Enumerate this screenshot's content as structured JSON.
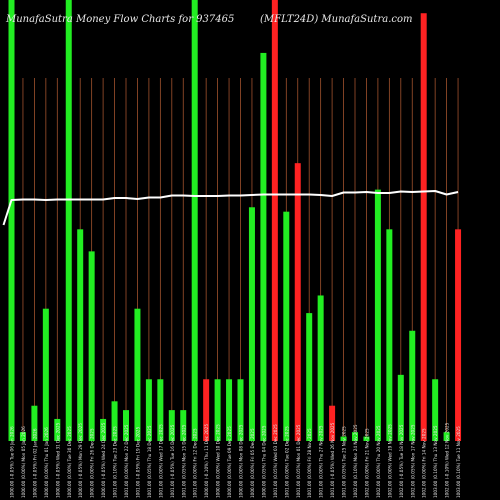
{
  "header": {
    "left": "MunafaSutra  Money Flow  Charts for 937465",
    "right": "(MFLT24D) MunafaSutra.com"
  },
  "colors": {
    "background": "#000000",
    "up": "#22ee22",
    "down": "#ff2222",
    "grid": "#a0522d",
    "line": "#ffffff",
    "text": "#e8e8e8"
  },
  "chart_data": {
    "type": "bar",
    "title": "MunafaSutra  Money Flow  Charts for 937465",
    "grid": "vertical",
    "categories": [
      "Tue 06 Jan 2026",
      "Mon 05 Jan 2026",
      "Fri 02 Jan 2026",
      "Thu 01 Jan 2026",
      "Wed 31 Dec 2025",
      "Tue 30 Dec 2025",
      "Mon 29 Dec 2025",
      "Fri 26 Dec 2025",
      "Wed 24 Dec 2025",
      "Tue 23 Dec 2025",
      "Mon 22 Dec 2025",
      "Fri 19 Dec 2025",
      "Thu 18 Dec 2025",
      "Wed 17 Dec 2025",
      "Tue 16 Dec 2025",
      "Mon 15 Dec 2025",
      "Fri 12 Dec 2025",
      "Thu 11 Dec 2025",
      "Wed 10 Dec 2025",
      "Tue 09 Dec 2025",
      "Mon 08 Dec 2025",
      "Fri 05 Dec 2025",
      "Thu 04 Dec 2025",
      "Wed 03 Dec 2025",
      "Tue 02 Dec 2025",
      "Mon 01 Dec 2025",
      "Fri 28 Nov 2025",
      "Thu 27 Nov 2025",
      "Wed 26 Nov 2025",
      "Tue 25 Nov 2025",
      "Mon 24 Nov 2025",
      "Fri 21 Nov 2025",
      "Thu 20 Nov 2025",
      "Wed 19 Nov 2025",
      "Tue 18 Nov 2025",
      "Mon 17 Nov 2025",
      "Fri 14 Nov 2025",
      "Thu 13 Nov 2025",
      "Wed 12 Nov 2025",
      "Tue 11 Nov 2025"
    ],
    "tick_labels": [
      "1000.00 (-0.05%)",
      "1000.00 (0.00%)",
      "1000.00 (-0.05%)",
      "1000.00 (0.00%)",
      "1000.00 (-0.05%)",
      "1000.00 (0.00%)",
      "1000.00 (-0.05%)",
      "1000.00 (0.00%)",
      "1000.00 (-0.05%)",
      "1001.00 (0.10%)",
      "1001.00 (0.00%)",
      "1001.00 (-0.05%)",
      "1001.00 (0.05%)",
      "1001.00 (0.00%)",
      "1001.00 (-0.05%)",
      "1001.00 (0.05%)",
      "1001.00 (0.00%)",
      "1000.00 (-0.10%)",
      "1000.00 (0.00%)",
      "1000.00 (0.00%)",
      "1000.00 (0.00%)",
      "1000.00 (0.00%)",
      "1000.00 (0.05%)",
      "1001.00 (0.05%)",
      "1001.00 (0.00%)",
      "1001.00 (0.05%)",
      "1001.00 (0.00%)",
      "1001.00 (0.00%)",
      "1001.00 (-0.05%)",
      "1001.00 (0.05%)",
      "1002.00 (0.10%)",
      "1002.00 (0.00%)",
      "1002.00 (0.00%)",
      "1002.00 (0.00%)",
      "1002.00 (-0.05%)",
      "1002.00 (0.05%)",
      "1002.00 (0.00%)",
      "1003.00 (0.10%)",
      "1002.00 (-0.10%)",
      "1003.00 (0.10%)"
    ],
    "bar_values": [
      100,
      2,
      8,
      30,
      5,
      100,
      48,
      43,
      5,
      9,
      7,
      30,
      14,
      14,
      7,
      7,
      100,
      14,
      14,
      14,
      14,
      53,
      88,
      100,
      52,
      63,
      29,
      33,
      8,
      1,
      2,
      1,
      57,
      48,
      15,
      25,
      97,
      14,
      2,
      48
    ],
    "bar_directions": [
      "up",
      "up",
      "up",
      "up",
      "up",
      "up",
      "up",
      "up",
      "up",
      "up",
      "up",
      "up",
      "up",
      "up",
      "up",
      "up",
      "up",
      "down",
      "up",
      "up",
      "up",
      "up",
      "up",
      "down",
      "up",
      "down",
      "up",
      "up",
      "down",
      "up",
      "up",
      "up",
      "up",
      "up",
      "up",
      "up",
      "down",
      "up",
      "up",
      "down"
    ],
    "line_values": [
      1000.0,
      1000.1,
      1000.1,
      1000.0,
      1000.1,
      1000.1,
      1000.1,
      1000.1,
      1000.1,
      1000.4,
      1000.4,
      1000.2,
      1000.5,
      1000.5,
      1000.9,
      1000.9,
      1000.8,
      1000.8,
      1000.8,
      1000.9,
      1000.9,
      1001.0,
      1001.1,
      1001.1,
      1001.1,
      1001.1,
      1001.1,
      1001.0,
      1000.8,
      1001.5,
      1001.5,
      1001.6,
      1001.4,
      1001.4,
      1001.7,
      1001.6,
      1001.7,
      1001.8,
      1001.1,
      1001.6
    ],
    "line_start": 995.0,
    "ylim_bars": [
      0,
      100
    ],
    "ylim_line": [
      980,
      1010
    ]
  }
}
